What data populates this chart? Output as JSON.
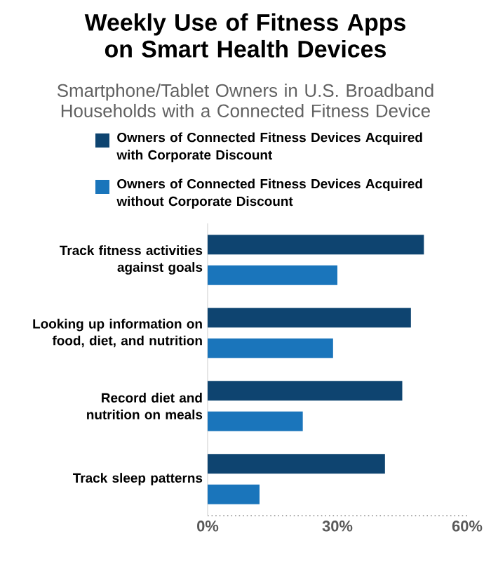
{
  "chart_data": {
    "type": "bar",
    "orientation": "horizontal",
    "title": "Weekly Use of Fitness Apps on Smart Health Devices",
    "subtitle": "Smartphone/Tablet Owners in U.S. Broadband Households with a Connected Fitness Device",
    "categories": [
      "Track fitness activities against goals",
      "Looking up information on food, diet, and nutrition",
      "Record diet and nutrition on meals",
      "Track sleep patterns"
    ],
    "series": [
      {
        "name": "Owners of Connected Fitness Devices Acquired with Corporate Discount",
        "color": "#0e4470",
        "values": [
          50,
          47,
          45,
          41
        ]
      },
      {
        "name": "Owners of Connected Fitness Devices Acquired without Corporate Discount",
        "color": "#1a75bb",
        "values": [
          30,
          29,
          22,
          12
        ]
      }
    ],
    "xlim": [
      0,
      60
    ],
    "xticks": [
      {
        "value": 0,
        "label": "0%"
      },
      {
        "value": 30,
        "label": "30%"
      },
      {
        "value": 60,
        "label": "60%"
      }
    ],
    "legend": "top",
    "grid": false
  }
}
